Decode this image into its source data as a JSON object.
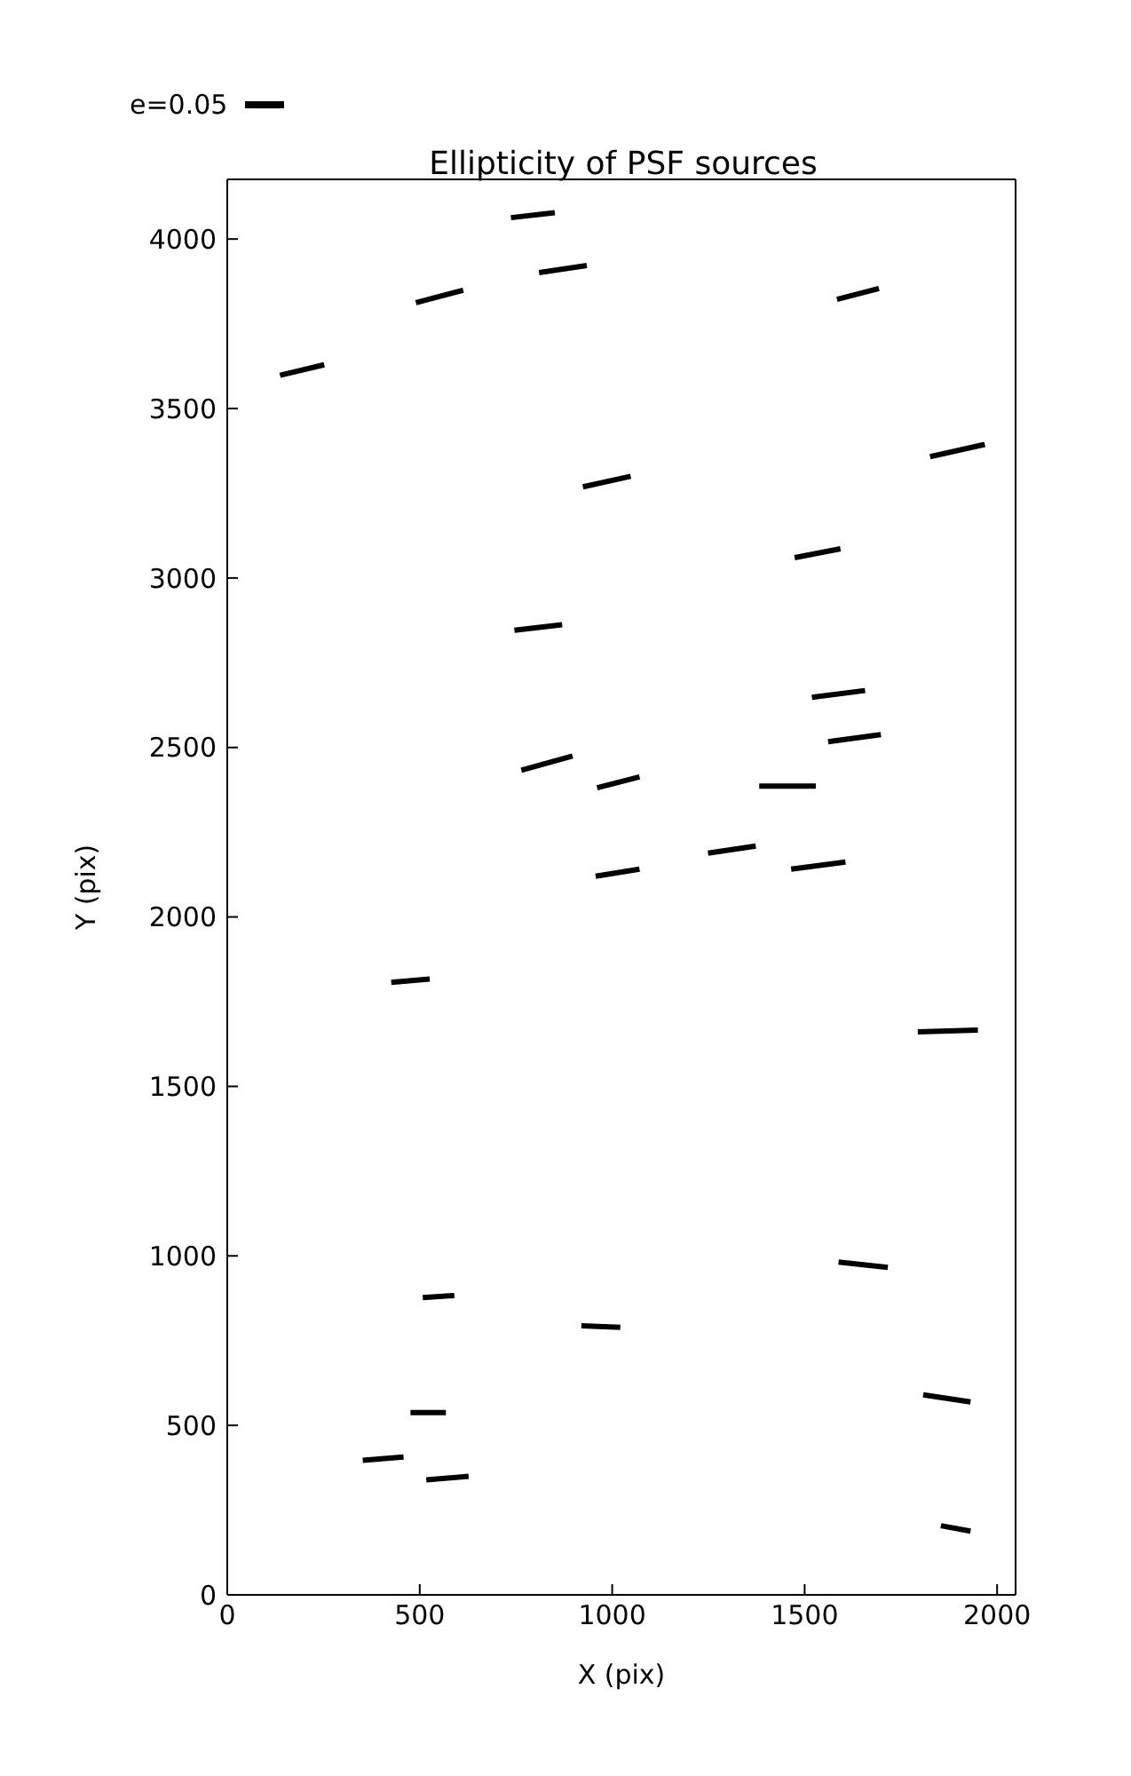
{
  "chart_data": {
    "type": "line",
    "title": "Ellipticity of PSF sources",
    "xlabel": "X (pix)",
    "ylabel": "Y (pix)",
    "annotations": [
      "e=0.05"
    ],
    "xlim": [
      0,
      2048
    ],
    "ylim": [
      0,
      4176
    ],
    "xticks": [
      0,
      500,
      1000,
      1500,
      2000
    ],
    "yticks": [
      0,
      500,
      1000,
      1500,
      2000,
      2500,
      3000,
      3500,
      4000
    ],
    "marker": "none",
    "line_style": "solid",
    "series": [
      {
        "color": "#000000",
        "x": [
          737,
          851
        ],
        "values": [
          4063,
          4078
        ]
      },
      {
        "color": "#000000",
        "x": [
          490,
          613
        ],
        "values": [
          3812,
          3849
        ]
      },
      {
        "color": "#000000",
        "x": [
          810,
          934
        ],
        "values": [
          3901,
          3922
        ]
      },
      {
        "color": "#000000",
        "x": [
          137,
          252
        ],
        "values": [
          3598,
          3629
        ]
      },
      {
        "color": "#000000",
        "x": [
          1584,
          1693
        ],
        "values": [
          3822,
          3854
        ]
      },
      {
        "color": "#000000",
        "x": [
          1826,
          1968
        ],
        "values": [
          3358,
          3394
        ]
      },
      {
        "color": "#000000",
        "x": [
          924,
          1048
        ],
        "values": [
          3269,
          3300
        ]
      },
      {
        "color": "#000000",
        "x": [
          1474,
          1593
        ],
        "values": [
          3060,
          3086
        ]
      },
      {
        "color": "#000000",
        "x": [
          746,
          870
        ],
        "values": [
          2846,
          2862
        ]
      },
      {
        "color": "#000000",
        "x": [
          1519,
          1657
        ],
        "values": [
          2648,
          2668
        ]
      },
      {
        "color": "#000000",
        "x": [
          1561,
          1698
        ],
        "values": [
          2517,
          2538
        ]
      },
      {
        "color": "#000000",
        "x": [
          764,
          897
        ],
        "values": [
          2433,
          2475
        ]
      },
      {
        "color": "#000000",
        "x": [
          961,
          1071
        ],
        "values": [
          2381,
          2413
        ]
      },
      {
        "color": "#000000",
        "x": [
          1382,
          1529
        ],
        "values": [
          2386,
          2386
        ]
      },
      {
        "color": "#000000",
        "x": [
          1249,
          1373
        ],
        "values": [
          2188,
          2209
        ]
      },
      {
        "color": "#000000",
        "x": [
          1465,
          1606
        ],
        "values": [
          2141,
          2162
        ]
      },
      {
        "color": "#000000",
        "x": [
          957,
          1071
        ],
        "values": [
          2120,
          2141
        ]
      },
      {
        "color": "#000000",
        "x": [
          426,
          526
        ],
        "values": [
          1807,
          1817
        ]
      },
      {
        "color": "#000000",
        "x": [
          1794,
          1950
        ],
        "values": [
          1661,
          1666
        ]
      },
      {
        "color": "#000000",
        "x": [
          1588,
          1716
        ],
        "values": [
          982,
          966
        ]
      },
      {
        "color": "#000000",
        "x": [
          508,
          590
        ],
        "values": [
          877,
          883
        ]
      },
      {
        "color": "#000000",
        "x": [
          920,
          1021
        ],
        "values": [
          794,
          789
        ]
      },
      {
        "color": "#000000",
        "x": [
          1808,
          1931
        ],
        "values": [
          590,
          569
        ]
      },
      {
        "color": "#000000",
        "x": [
          476,
          568
        ],
        "values": [
          538,
          538
        ]
      },
      {
        "color": "#000000",
        "x": [
          352,
          458
        ],
        "values": [
          397,
          407
        ]
      },
      {
        "color": "#000000",
        "x": [
          517,
          627
        ],
        "values": [
          339,
          350
        ]
      },
      {
        "color": "#000000",
        "x": [
          1854,
          1931
        ],
        "values": [
          204,
          188
        ]
      }
    ]
  }
}
